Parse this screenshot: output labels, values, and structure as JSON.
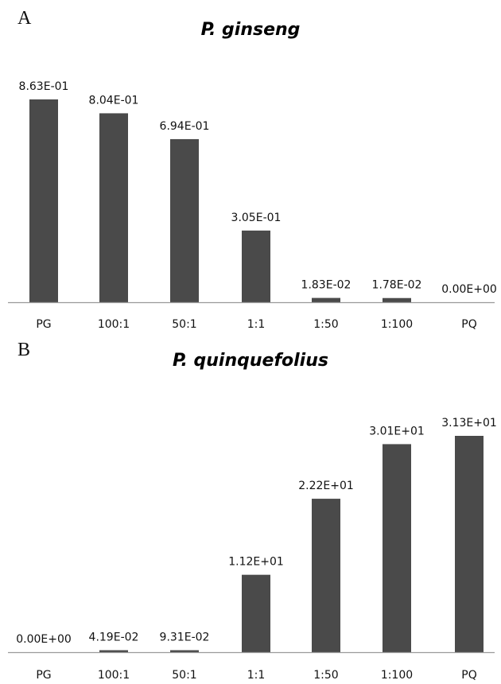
{
  "chart_data": [
    {
      "type": "bar",
      "panel": "A",
      "title": "P. ginseng",
      "categories": [
        "PG",
        "100:1",
        "50:1",
        "1:1",
        "1:50",
        "1:100",
        "PQ"
      ],
      "values": [
        0.863,
        0.804,
        0.694,
        0.305,
        0.0183,
        0.0178,
        0.0
      ],
      "value_labels": [
        "8.63E-01",
        "8.04E-01",
        "6.94E-01",
        "3.05E-01",
        "1.83E-02",
        "1.78E-02",
        "0.00E+00"
      ],
      "ylim": [
        0,
        0.863
      ],
      "xlabel": "",
      "ylabel": "",
      "grid": false,
      "bar_color": "#4a4a4a"
    },
    {
      "type": "bar",
      "panel": "B",
      "title": "P. quinquefolius",
      "categories": [
        "PG",
        "100:1",
        "50:1",
        "1:1",
        "1:50",
        "1:100",
        "PQ"
      ],
      "values": [
        0.0,
        0.0419,
        0.0931,
        11.2,
        22.2,
        30.1,
        31.3
      ],
      "value_labels": [
        "0.00E+00",
        "4.19E-02",
        "9.31E-02",
        "1.12E+01",
        "2.22E+01",
        "3.01E+01",
        "3.13E+01"
      ],
      "ylim": [
        0,
        31.3
      ],
      "xlabel": "",
      "ylabel": "",
      "grid": false,
      "bar_color": "#4a4a4a"
    }
  ]
}
